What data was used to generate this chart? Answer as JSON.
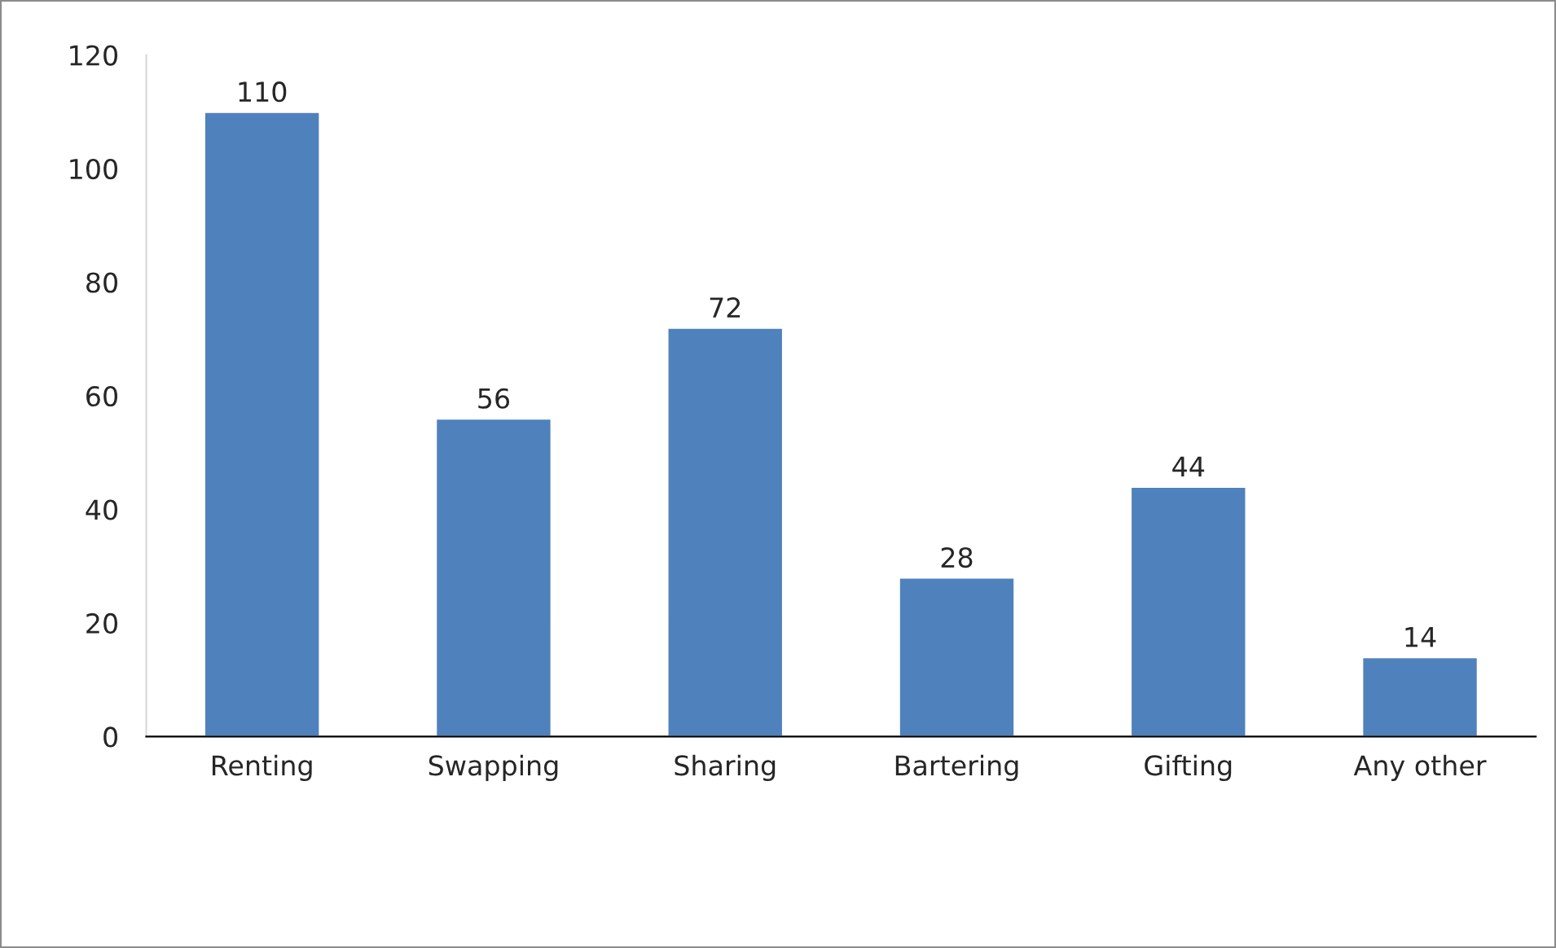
{
  "chart_data": {
    "type": "bar",
    "categories": [
      "Renting",
      "Swapping",
      "Sharing",
      "Bartering",
      "Gifting",
      "Any other"
    ],
    "values": [
      110,
      56,
      72,
      28,
      44,
      14
    ],
    "color": "#4f81bd",
    "ylim": [
      0,
      120
    ],
    "yticks": [
      0,
      20,
      40,
      60,
      80,
      100,
      120
    ],
    "data_labels": true
  }
}
